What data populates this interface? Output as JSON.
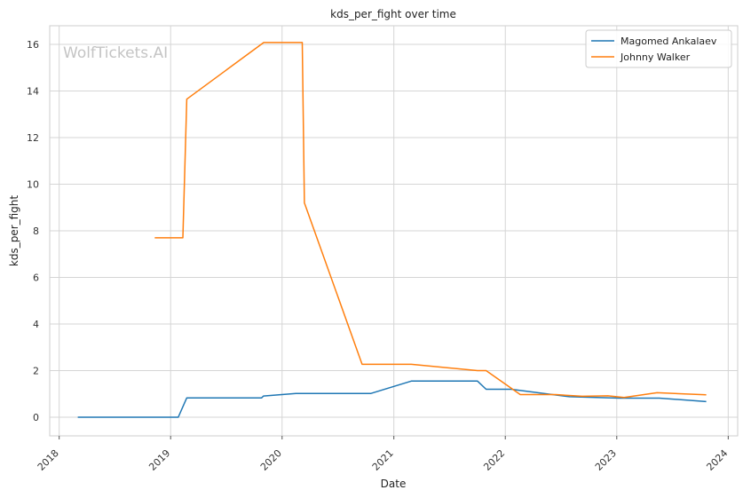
{
  "chart_data": {
    "type": "line",
    "title": "kds_per_fight over time",
    "xlabel": "Date",
    "ylabel": "kds_per_fight",
    "watermark": "WolfTickets.AI",
    "x_ticks": [
      "2018",
      "2019",
      "2020",
      "2021",
      "2022",
      "2023",
      "2024"
    ],
    "y_ticks": [
      "0",
      "2",
      "4",
      "6",
      "8",
      "10",
      "12",
      "14",
      "16"
    ],
    "xlim": [
      "2017-12-01",
      "2024-02-01"
    ],
    "ylim": [
      -0.8,
      16.8
    ],
    "grid": true,
    "legend_position": "top-right",
    "series": [
      {
        "name": "Magomed Ankalaev",
        "color": "#1f77b4",
        "points": [
          {
            "x": "2018-03-03",
            "y": 0.0
          },
          {
            "x": "2019-01-26",
            "y": 0.0
          },
          {
            "x": "2019-02-23",
            "y": 0.83
          },
          {
            "x": "2019-10-26",
            "y": 0.83
          },
          {
            "x": "2019-11-01",
            "y": 0.91
          },
          {
            "x": "2020-02-15",
            "y": 1.02
          },
          {
            "x": "2020-10-18",
            "y": 1.02
          },
          {
            "x": "2021-02-27",
            "y": 1.55
          },
          {
            "x": "2021-10-02",
            "y": 1.55
          },
          {
            "x": "2021-10-30",
            "y": 1.2
          },
          {
            "x": "2022-01-20",
            "y": 1.2
          },
          {
            "x": "2022-07-30",
            "y": 0.88
          },
          {
            "x": "2023-01-10",
            "y": 0.82
          },
          {
            "x": "2023-05-20",
            "y": 0.82
          },
          {
            "x": "2023-10-21",
            "y": 0.67
          }
        ]
      },
      {
        "name": "Johnny Walker",
        "color": "#ff7f0e",
        "points": [
          {
            "x": "2018-11-10",
            "y": 7.7
          },
          {
            "x": "2019-02-10",
            "y": 7.7
          },
          {
            "x": "2019-02-23",
            "y": 13.65
          },
          {
            "x": "2019-11-02",
            "y": 16.08
          },
          {
            "x": "2020-03-07",
            "y": 16.08
          },
          {
            "x": "2020-03-14",
            "y": 9.2
          },
          {
            "x": "2020-09-19",
            "y": 2.27
          },
          {
            "x": "2021-02-27",
            "y": 2.27
          },
          {
            "x": "2021-10-02",
            "y": 2.0
          },
          {
            "x": "2021-10-30",
            "y": 2.0
          },
          {
            "x": "2022-02-19",
            "y": 0.97
          },
          {
            "x": "2022-06-15",
            "y": 0.97
          },
          {
            "x": "2022-09-10",
            "y": 0.9
          },
          {
            "x": "2022-12-03",
            "y": 0.92
          },
          {
            "x": "2023-01-25",
            "y": 0.85
          },
          {
            "x": "2023-05-13",
            "y": 1.05
          },
          {
            "x": "2023-10-21",
            "y": 0.96
          }
        ]
      }
    ]
  }
}
